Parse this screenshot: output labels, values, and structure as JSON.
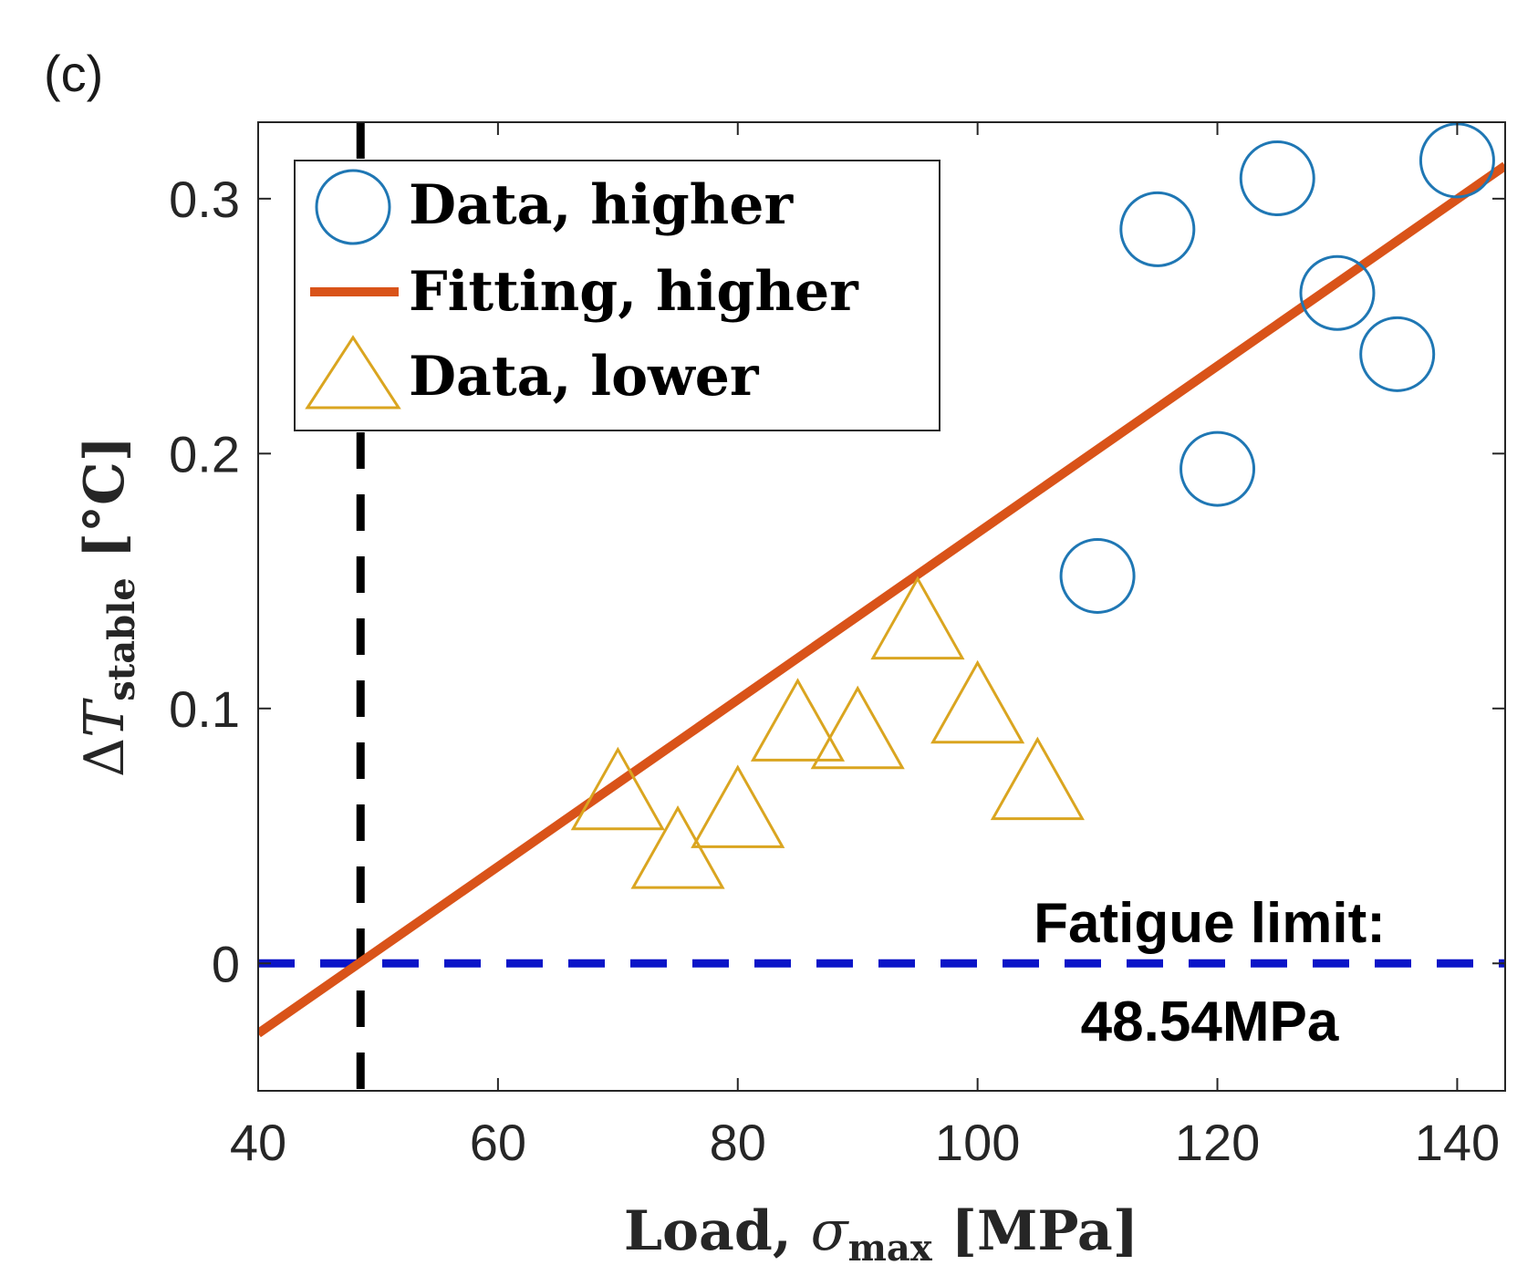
{
  "chart_data": {
    "type": "scatter",
    "panel_label": "(c)",
    "xlabel_main": "Load, ",
    "xlabel_symbol": "σ",
    "xlabel_sub": "max",
    "xlabel_unit": " [MPa]",
    "ylabel_delta": "Δ",
    "ylabel_symbol": "T",
    "ylabel_sub": "stable",
    "ylabel_unit": " [°C]",
    "xlim": [
      40,
      144
    ],
    "ylim": [
      -0.05,
      0.33
    ],
    "xticks": [
      40,
      60,
      80,
      100,
      120,
      140
    ],
    "xtick_labels": [
      "40",
      "60",
      "80",
      "100",
      "120",
      "140"
    ],
    "yticks": [
      0,
      0.1,
      0.2,
      0.3
    ],
    "ytick_labels": [
      "0",
      "0.1",
      "0.2",
      "0.3"
    ],
    "series": [
      {
        "name": "Data, higher",
        "kind": "scatter",
        "marker": "circle",
        "color": "#1f77b4",
        "x": [
          110,
          115,
          120,
          125,
          130,
          135,
          140
        ],
        "y": [
          0.152,
          0.288,
          0.194,
          0.308,
          0.263,
          0.239,
          0.315
        ]
      },
      {
        "name": "Fitting, higher",
        "kind": "line",
        "color": "#d95319",
        "x": [
          40,
          144
        ],
        "y": [
          -0.0275,
          0.3129
        ]
      },
      {
        "name": "Data, lower",
        "kind": "scatter",
        "marker": "triangle",
        "color": "#daa520",
        "x": [
          70,
          75,
          80,
          85,
          90,
          95,
          100,
          105
        ],
        "y": [
          0.066,
          0.043,
          0.059,
          0.093,
          0.09,
          0.133,
          0.1,
          0.07
        ]
      }
    ],
    "reference_lines": [
      {
        "name": "zero-line",
        "orientation": "horizontal",
        "value": 0,
        "color": "#0a14c8",
        "style": "dashed"
      },
      {
        "name": "fatigue-limit-line",
        "orientation": "vertical",
        "value": 48.54,
        "color": "#000000",
        "style": "dashed"
      }
    ],
    "annotation": {
      "line1": "Fatigue limit:",
      "line2": "48.54MPa"
    },
    "legend_position": "top-left"
  }
}
